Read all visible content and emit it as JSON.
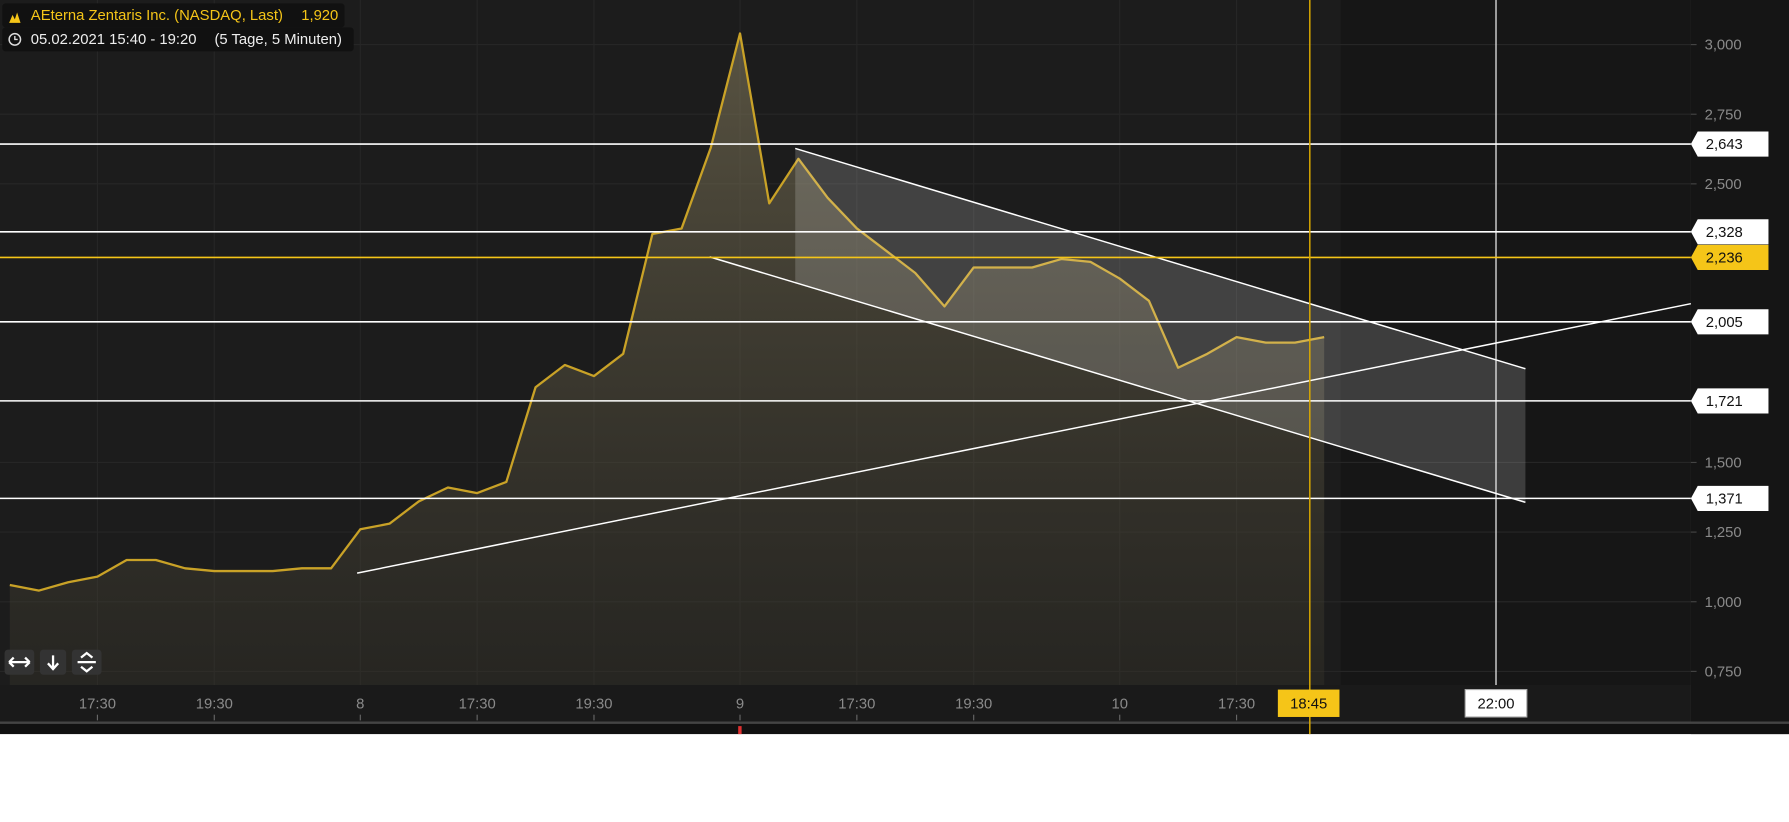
{
  "chart_data": {
    "type": "line",
    "title": "AEterna Zentaris Inc. (NASDAQ, Last)",
    "last_price": "1,920",
    "subtitle": "05.02.2021 15:40 - 19:20",
    "period": "(5 Tage, 5 Minuten)",
    "categories": [
      null,
      null,
      null,
      "17:30",
      null,
      null,
      null,
      "19:30",
      null,
      null,
      null,
      null,
      "8",
      null,
      null,
      null,
      "17:30",
      null,
      null,
      null,
      "19:30",
      null,
      null,
      null,
      null,
      "9",
      null,
      null,
      null,
      "17:30",
      null,
      null,
      null,
      "19:30",
      null,
      null,
      null,
      null,
      "10",
      null,
      null,
      null,
      "17:30",
      null,
      null,
      null,
      null,
      null,
      null,
      null,
      null,
      "22:00",
      null,
      null,
      null,
      null,
      null,
      null
    ],
    "series": [
      {
        "name": "AEterna Zentaris Inc.",
        "color": "#c9a227",
        "values": [
          1.06,
          1.04,
          1.07,
          1.09,
          1.15,
          1.15,
          1.12,
          1.11,
          1.11,
          1.11,
          1.12,
          1.12,
          1.26,
          1.28,
          1.36,
          1.41,
          1.39,
          1.43,
          1.77,
          1.85,
          1.81,
          1.89,
          2.32,
          2.34,
          2.63,
          3.04,
          2.43,
          2.59,
          2.45,
          2.34,
          2.26,
          2.18,
          2.06,
          2.2,
          2.2,
          2.2,
          2.23,
          2.22,
          2.16,
          2.08,
          1.84,
          1.89,
          1.95,
          1.93,
          1.93,
          1.95,
          null,
          null,
          null,
          null,
          null,
          null,
          null,
          null,
          null,
          null,
          null,
          null
        ]
      }
    ],
    "ylim": [
      0.57,
      3.16
    ],
    "yticks": [
      {
        "value": 0.75,
        "label": "0,750"
      },
      {
        "value": 1.0,
        "label": "1,000"
      },
      {
        "value": 1.25,
        "label": "1,250"
      },
      {
        "value": 1.5,
        "label": "1,500"
      },
      {
        "value": 2.5,
        "label": "2,500"
      },
      {
        "value": 2.75,
        "label": "2,750"
      },
      {
        "value": 3.0,
        "label": "3,000"
      }
    ],
    "levels": [
      {
        "value": 2.643,
        "label": "2,643",
        "color": "#ffffff"
      },
      {
        "value": 2.328,
        "label": "2,328",
        "color": "#ffffff"
      },
      {
        "value": 2.236,
        "label": "2,236",
        "color": "#f5c518"
      },
      {
        "value": 2.005,
        "label": "2,005",
        "color": "#ffffff"
      },
      {
        "value": 1.721,
        "label": "1,721",
        "color": "#ffffff"
      },
      {
        "value": 1.371,
        "label": "1,371",
        "color": "#ffffff"
      }
    ],
    "crosshair_label": "18:45",
    "grid": true
  }
}
